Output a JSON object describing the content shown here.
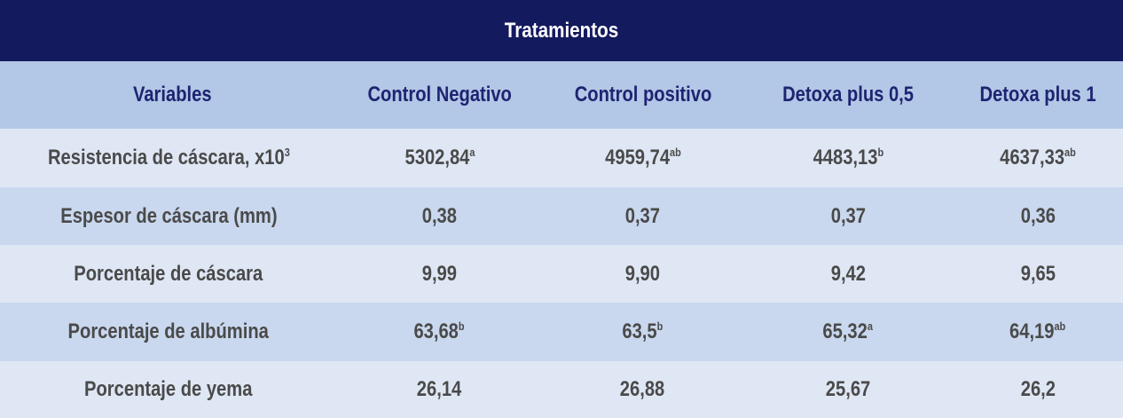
{
  "title": "Tratamientos",
  "columns": [
    "Variables",
    "Control Negativo",
    "Control positivo",
    "Detoxa plus 0,5",
    "Detoxa plus 1"
  ],
  "rows": [
    {
      "label": "Resistencia de cáscara, x10",
      "label_sup": "3",
      "cells": [
        {
          "value": "5302,84",
          "sup": "a"
        },
        {
          "value": "4959,74",
          "sup": "ab"
        },
        {
          "value": "4483,13",
          "sup": "b"
        },
        {
          "value": "4637,33",
          "sup": "ab"
        }
      ]
    },
    {
      "label": "Espesor de cáscara (mm)",
      "label_sup": "",
      "cells": [
        {
          "value": "0,38",
          "sup": ""
        },
        {
          "value": "0,37",
          "sup": ""
        },
        {
          "value": "0,37",
          "sup": ""
        },
        {
          "value": "0,36",
          "sup": ""
        }
      ]
    },
    {
      "label": "Porcentaje de cáscara",
      "label_sup": "",
      "cells": [
        {
          "value": "9,99",
          "sup": ""
        },
        {
          "value": "9,90",
          "sup": ""
        },
        {
          "value": "9,42",
          "sup": ""
        },
        {
          "value": "9,65",
          "sup": ""
        }
      ]
    },
    {
      "label": "Porcentaje de albúmina",
      "label_sup": "",
      "cells": [
        {
          "value": "63,68",
          "sup": "b"
        },
        {
          "value": "63,5",
          "sup": "b"
        },
        {
          "value": "65,32",
          "sup": "a"
        },
        {
          "value": "64,19",
          "sup": "ab"
        }
      ]
    },
    {
      "label": "Porcentaje de yema",
      "label_sup": "",
      "cells": [
        {
          "value": "26,14",
          "sup": ""
        },
        {
          "value": "26,88",
          "sup": ""
        },
        {
          "value": "25,67",
          "sup": ""
        },
        {
          "value": "26,2",
          "sup": ""
        }
      ]
    }
  ]
}
